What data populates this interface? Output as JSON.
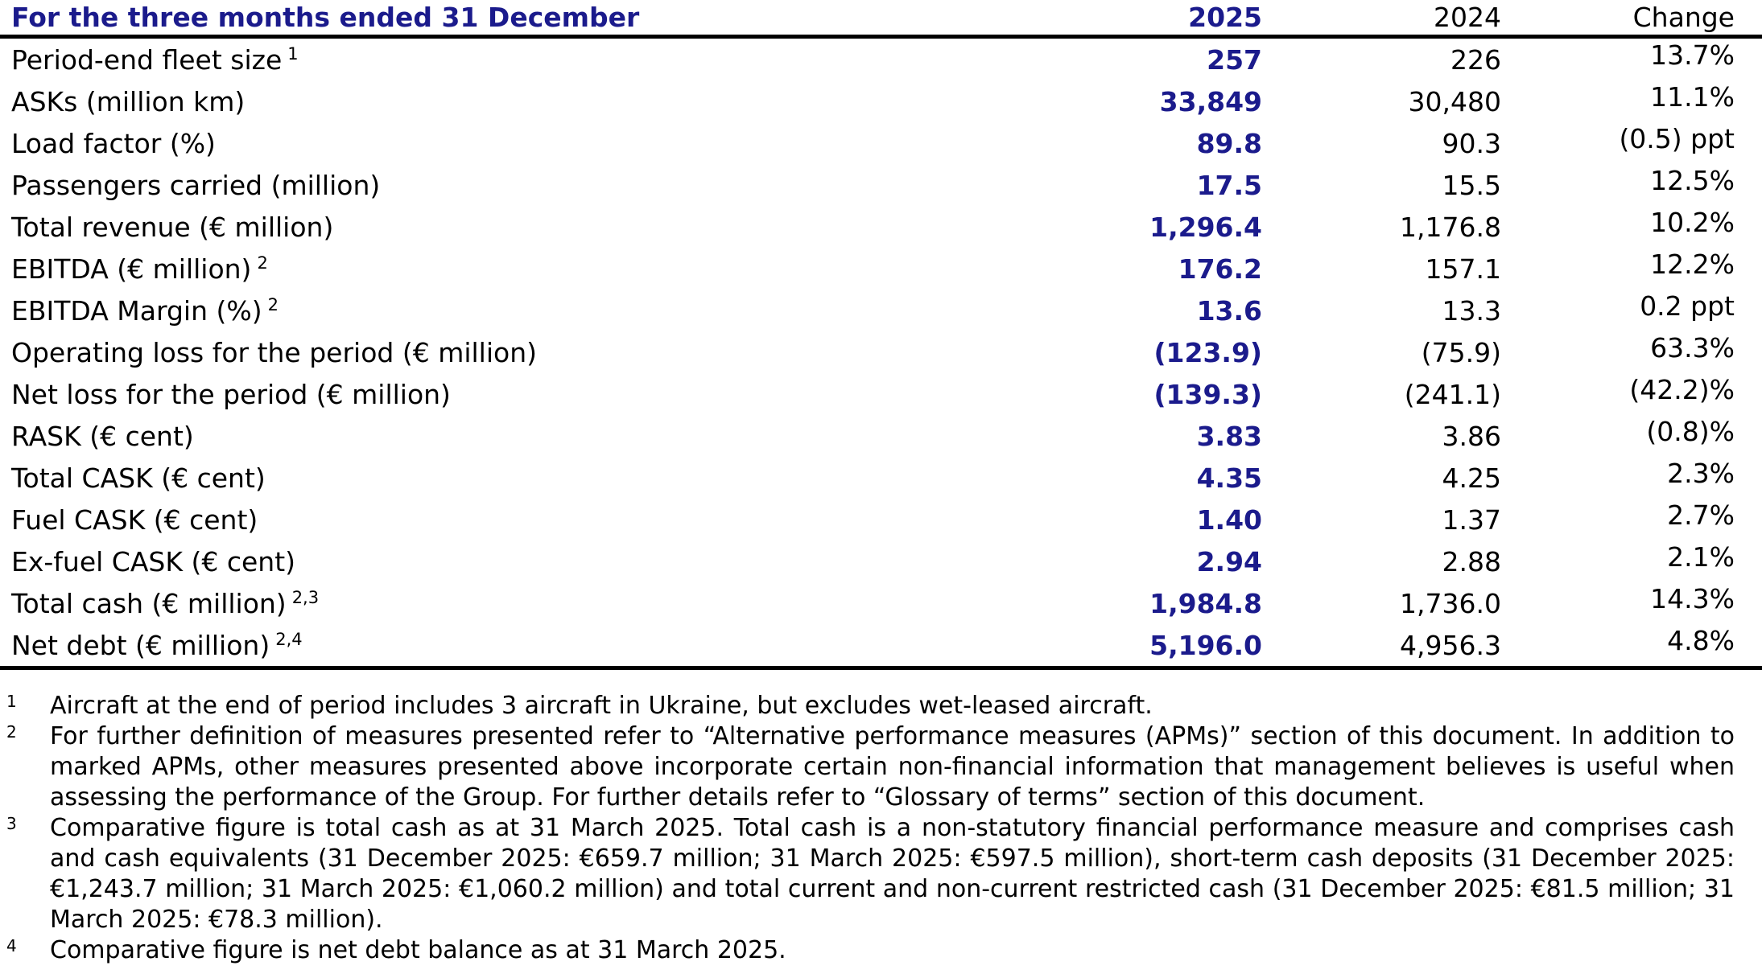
{
  "colors": {
    "navy": "#1b1b8c",
    "text": "#000000",
    "rule": "#000000"
  },
  "table": {
    "header": {
      "title": "For the three months ended 31 December",
      "col_2025": "2025",
      "col_2024": "2024",
      "col_change": "Change"
    },
    "rows": [
      {
        "label": "Period-end fleet size",
        "sup": "1",
        "v2025": "257",
        "v2024": "226",
        "change": "13.7%"
      },
      {
        "label": "ASKs (million km)",
        "sup": "",
        "v2025": "33,849",
        "v2024": "30,480",
        "change": "11.1%"
      },
      {
        "label": "Load factor (%)",
        "sup": "",
        "v2025": "89.8",
        "v2024": "90.3",
        "change": "(0.5) ppt"
      },
      {
        "label": "Passengers carried (million)",
        "sup": "",
        "v2025": "17.5",
        "v2024": "15.5",
        "change": "12.5%"
      },
      {
        "label": "Total revenue (€ million)",
        "sup": "",
        "v2025": "1,296.4",
        "v2024": "1,176.8",
        "change": "10.2%"
      },
      {
        "label": "EBITDA (€ million)",
        "sup": "2",
        "v2025": "176.2",
        "v2024": "157.1",
        "change": "12.2%"
      },
      {
        "label": "EBITDA Margin (%)",
        "sup": "2",
        "v2025": "13.6",
        "v2024": "13.3",
        "change": "0.2 ppt"
      },
      {
        "label": "Operating loss for the period (€ million)",
        "sup": "",
        "v2025": "(123.9)",
        "v2024": "(75.9)",
        "change": "63.3%"
      },
      {
        "label": "Net loss for the period (€ million)",
        "sup": "",
        "v2025": "(139.3)",
        "v2024": "(241.1)",
        "change": "(42.2)%"
      },
      {
        "label": "RASK (€ cent)",
        "sup": "",
        "v2025": "3.83",
        "v2024": "3.86",
        "change": "(0.8)%"
      },
      {
        "label": "Total CASK (€ cent)",
        "sup": "",
        "v2025": "4.35",
        "v2024": "4.25",
        "change": "2.3%"
      },
      {
        "label": "Fuel CASK (€ cent)",
        "sup": "",
        "v2025": "1.40",
        "v2024": "1.37",
        "change": "2.7%"
      },
      {
        "label": "Ex-fuel CASK (€ cent)",
        "sup": "",
        "v2025": "2.94",
        "v2024": "2.88",
        "change": "2.1%"
      },
      {
        "label": "Total cash (€ million)",
        "sup": "2,3",
        "v2025": "1,984.8",
        "v2024": "1,736.0",
        "change": "14.3%"
      },
      {
        "label": "Net debt (€ million)",
        "sup": "2,4",
        "v2025": "5,196.0",
        "v2024": "4,956.3",
        "change": "4.8%"
      }
    ]
  },
  "footnotes": [
    {
      "marker": "1",
      "text": "Aircraft at the end of period includes 3 aircraft in Ukraine, but excludes wet-leased aircraft."
    },
    {
      "marker": "2",
      "text": "For further definition of measures presented refer to “Alternative performance measures (APMs)” section of this document. In addition to marked APMs, other measures presented above incorporate certain non-financial information that management believes is useful when assessing the performance of the Group. For further details refer to “Glossary of terms” section of this document."
    },
    {
      "marker": "3",
      "text": "Comparative figure is total cash as at 31 March 2025. Total cash is a non-statutory financial performance measure and comprises cash and cash equivalents (31 December 2025: €659.7 million; 31 March 2025: €597.5 million), short-term cash deposits (31 December 2025: €1,243.7 million; 31 March 2025: €1,060.2 million) and total current and non-current restricted cash (31 December 2025: €81.5 million; 31 March 2025: €78.3 million)."
    },
    {
      "marker": "4",
      "text": "Comparative figure is net debt balance as at 31 March 2025."
    }
  ]
}
